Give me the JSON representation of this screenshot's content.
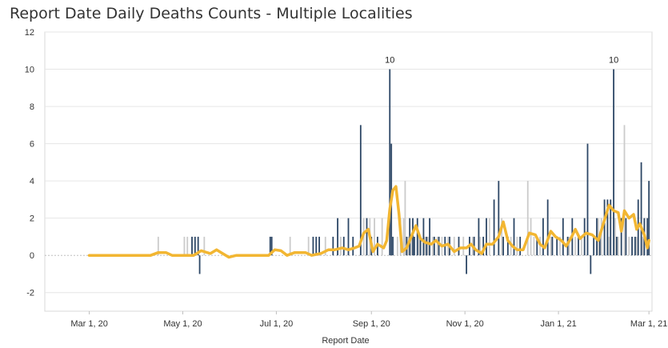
{
  "chart_data": {
    "type": "bar",
    "title": "Report Date Daily Deaths Counts - Multiple Localities",
    "xlabel": "Report Date",
    "ylabel": "",
    "ylim": [
      -3,
      12
    ],
    "xlim": [
      "2020-02-01",
      "2021-03-03"
    ],
    "y_ticks": [
      -2,
      0,
      2,
      4,
      6,
      8,
      10,
      12
    ],
    "x_ticks": [
      {
        "date": "2020-03-01",
        "label": "Mar 1, 20"
      },
      {
        "date": "2020-05-01",
        "label": "May 1, 20"
      },
      {
        "date": "2020-07-01",
        "label": "Jul 1, 20"
      },
      {
        "date": "2020-09-01",
        "label": "Sep 1, 20"
      },
      {
        "date": "2020-11-01",
        "label": "Nov 1, 20"
      },
      {
        "date": "2021-01-01",
        "label": "Jan 1, 21"
      },
      {
        "date": "2021-03-01",
        "label": "Mar 1, 21"
      }
    ],
    "grid": true,
    "colors": {
      "dark": "#2d4766",
      "gray": "#cbcbcb",
      "line": "#f2b632",
      "grid": "#e6e6e6"
    },
    "annotations": [
      {
        "date": "2020-09-13",
        "value": 10,
        "text": "10"
      },
      {
        "date": "2021-02-06",
        "value": 10,
        "text": "10"
      }
    ],
    "series": [
      {
        "style": "dark",
        "points": [
          [
            "2020-05-07",
            1
          ],
          [
            "2020-05-09",
            1
          ],
          [
            "2020-05-11",
            1
          ],
          [
            "2020-05-12",
            -1
          ],
          [
            "2020-06-27",
            1
          ],
          [
            "2020-06-28",
            1
          ],
          [
            "2020-07-25",
            1
          ],
          [
            "2020-07-27",
            1
          ],
          [
            "2020-07-29",
            1
          ],
          [
            "2020-08-07",
            1
          ],
          [
            "2020-08-10",
            2
          ],
          [
            "2020-08-14",
            1
          ],
          [
            "2020-08-17",
            2
          ],
          [
            "2020-08-20",
            1
          ],
          [
            "2020-08-25",
            7
          ],
          [
            "2020-08-29",
            2
          ],
          [
            "2020-09-01",
            1
          ],
          [
            "2020-09-05",
            1
          ],
          [
            "2020-09-13",
            10
          ],
          [
            "2020-09-14",
            6
          ],
          [
            "2020-09-15",
            1
          ],
          [
            "2020-09-24",
            1
          ],
          [
            "2020-09-26",
            2
          ],
          [
            "2020-09-28",
            2
          ],
          [
            "2020-09-29",
            1
          ],
          [
            "2020-10-01",
            2
          ],
          [
            "2020-10-03",
            1
          ],
          [
            "2020-10-05",
            2
          ],
          [
            "2020-10-07",
            1
          ],
          [
            "2020-10-09",
            2
          ],
          [
            "2020-10-12",
            1
          ],
          [
            "2020-10-15",
            1
          ],
          [
            "2020-10-19",
            1
          ],
          [
            "2020-10-22",
            1
          ],
          [
            "2020-10-28",
            1
          ],
          [
            "2020-11-02",
            -1
          ],
          [
            "2020-11-04",
            1
          ],
          [
            "2020-11-07",
            1
          ],
          [
            "2020-11-10",
            2
          ],
          [
            "2020-11-13",
            1
          ],
          [
            "2020-11-15",
            2
          ],
          [
            "2020-11-20",
            3
          ],
          [
            "2020-11-23",
            4
          ],
          [
            "2020-11-26",
            1
          ],
          [
            "2020-11-29",
            1
          ],
          [
            "2020-12-03",
            2
          ],
          [
            "2020-12-07",
            1
          ],
          [
            "2020-12-18",
            1
          ],
          [
            "2020-12-22",
            2
          ],
          [
            "2020-12-25",
            3
          ],
          [
            "2020-12-28",
            1
          ],
          [
            "2020-12-31",
            1
          ],
          [
            "2021-01-04",
            2
          ],
          [
            "2021-01-07",
            1
          ],
          [
            "2021-01-10",
            2
          ],
          [
            "2021-01-14",
            1
          ],
          [
            "2021-01-18",
            2
          ],
          [
            "2021-01-20",
            6
          ],
          [
            "2021-01-22",
            -1
          ],
          [
            "2021-01-24",
            1
          ],
          [
            "2021-01-26",
            2
          ],
          [
            "2021-01-28",
            1
          ],
          [
            "2021-01-31",
            3
          ],
          [
            "2021-02-02",
            3
          ],
          [
            "2021-02-04",
            3
          ],
          [
            "2021-02-06",
            10
          ],
          [
            "2021-02-08",
            1
          ],
          [
            "2021-02-11",
            2
          ],
          [
            "2021-02-14",
            2
          ],
          [
            "2021-02-18",
            1
          ],
          [
            "2021-02-20",
            1
          ],
          [
            "2021-02-22",
            3
          ],
          [
            "2021-02-24",
            5
          ],
          [
            "2021-02-26",
            2
          ],
          [
            "2021-02-28",
            2
          ],
          [
            "2021-03-01",
            4
          ]
        ]
      },
      {
        "style": "gray",
        "points": [
          [
            "2020-04-15",
            1
          ],
          [
            "2020-05-02",
            1
          ],
          [
            "2020-05-04",
            1
          ],
          [
            "2020-05-15",
            1
          ],
          [
            "2020-07-10",
            1
          ],
          [
            "2020-07-22",
            1
          ],
          [
            "2020-08-02",
            1
          ],
          [
            "2020-08-12",
            1
          ],
          [
            "2020-08-27",
            2
          ],
          [
            "2020-08-31",
            2
          ],
          [
            "2020-09-03",
            2
          ],
          [
            "2020-09-08",
            2
          ],
          [
            "2020-09-18",
            1
          ],
          [
            "2020-09-20",
            2
          ],
          [
            "2020-09-22",
            2
          ],
          [
            "2020-09-23",
            4
          ],
          [
            "2020-09-25",
            1
          ],
          [
            "2020-09-27",
            1
          ],
          [
            "2020-10-02",
            1
          ],
          [
            "2020-10-06",
            1
          ],
          [
            "2020-10-08",
            1
          ],
          [
            "2020-10-11",
            1
          ],
          [
            "2020-10-14",
            1
          ],
          [
            "2020-10-17",
            1
          ],
          [
            "2020-10-21",
            1
          ],
          [
            "2020-10-25",
            1
          ],
          [
            "2020-10-31",
            1
          ],
          [
            "2020-11-06",
            1
          ],
          [
            "2020-11-11",
            1
          ],
          [
            "2020-11-17",
            2
          ],
          [
            "2020-11-25",
            2
          ],
          [
            "2020-12-01",
            1
          ],
          [
            "2020-12-05",
            1
          ],
          [
            "2020-12-12",
            4
          ],
          [
            "2020-12-14",
            2
          ],
          [
            "2020-12-16",
            1
          ],
          [
            "2020-12-20",
            1
          ],
          [
            "2020-12-27",
            1
          ],
          [
            "2021-01-02",
            1
          ],
          [
            "2021-01-08",
            1
          ],
          [
            "2021-01-12",
            1
          ],
          [
            "2021-01-16",
            1
          ],
          [
            "2021-01-27",
            2
          ],
          [
            "2021-01-29",
            2
          ],
          [
            "2021-02-03",
            1
          ],
          [
            "2021-02-07",
            2
          ],
          [
            "2021-02-09",
            1
          ],
          [
            "2021-02-13",
            7
          ],
          [
            "2021-02-16",
            1
          ],
          [
            "2021-02-21",
            1
          ],
          [
            "2021-02-25",
            1
          ]
        ]
      },
      {
        "style": "line",
        "points": [
          [
            "2020-03-01",
            0
          ],
          [
            "2020-03-20",
            0
          ],
          [
            "2020-04-10",
            0
          ],
          [
            "2020-04-15",
            0.15
          ],
          [
            "2020-04-20",
            0.15
          ],
          [
            "2020-04-24",
            0
          ],
          [
            "2020-05-01",
            0
          ],
          [
            "2020-05-08",
            0
          ],
          [
            "2020-05-13",
            0.25
          ],
          [
            "2020-05-19",
            0.1
          ],
          [
            "2020-05-23",
            0.3
          ],
          [
            "2020-05-27",
            0.1
          ],
          [
            "2020-05-31",
            -0.1
          ],
          [
            "2020-06-05",
            0
          ],
          [
            "2020-06-20",
            0
          ],
          [
            "2020-06-26",
            0
          ],
          [
            "2020-06-30",
            0.3
          ],
          [
            "2020-07-04",
            0.25
          ],
          [
            "2020-07-08",
            0
          ],
          [
            "2020-07-13",
            0.15
          ],
          [
            "2020-07-20",
            0.15
          ],
          [
            "2020-07-24",
            0
          ],
          [
            "2020-07-30",
            0.1
          ],
          [
            "2020-08-04",
            0.3
          ],
          [
            "2020-08-08",
            0.3
          ],
          [
            "2020-08-13",
            0.4
          ],
          [
            "2020-08-17",
            0.3
          ],
          [
            "2020-08-21",
            0.4
          ],
          [
            "2020-08-24",
            0.5
          ],
          [
            "2020-08-27",
            1.2
          ],
          [
            "2020-08-30",
            1.4
          ],
          [
            "2020-09-02",
            0.2
          ],
          [
            "2020-09-05",
            0.6
          ],
          [
            "2020-09-09",
            0.4
          ],
          [
            "2020-09-11",
            0.8
          ],
          [
            "2020-09-13",
            2.5
          ],
          [
            "2020-09-15",
            3.5
          ],
          [
            "2020-09-17",
            3.7
          ],
          [
            "2020-09-19",
            2.2
          ],
          [
            "2020-09-21",
            0.2
          ],
          [
            "2020-09-24",
            0.4
          ],
          [
            "2020-09-27",
            1.0
          ],
          [
            "2020-09-30",
            1.6
          ],
          [
            "2020-10-03",
            0.9
          ],
          [
            "2020-10-06",
            0.7
          ],
          [
            "2020-10-10",
            0.6
          ],
          [
            "2020-10-13",
            0.8
          ],
          [
            "2020-10-17",
            0.5
          ],
          [
            "2020-10-21",
            0.6
          ],
          [
            "2020-10-25",
            0.2
          ],
          [
            "2020-10-29",
            0.4
          ],
          [
            "2020-11-02",
            0.4
          ],
          [
            "2020-11-05",
            0.6
          ],
          [
            "2020-11-08",
            0.3
          ],
          [
            "2020-11-12",
            0.1
          ],
          [
            "2020-11-15",
            0.6
          ],
          [
            "2020-11-19",
            0.6
          ],
          [
            "2020-11-23",
            1.0
          ],
          [
            "2020-11-26",
            1.8
          ],
          [
            "2020-11-29",
            0.8
          ],
          [
            "2020-12-02",
            0.5
          ],
          [
            "2020-12-05",
            0.3
          ],
          [
            "2020-12-09",
            0.3
          ],
          [
            "2020-12-13",
            1.2
          ],
          [
            "2020-12-17",
            1.1
          ],
          [
            "2020-12-20",
            0.6
          ],
          [
            "2020-12-23",
            0.4
          ],
          [
            "2020-12-27",
            1.3
          ],
          [
            "2020-12-30",
            1.0
          ],
          [
            "2021-01-03",
            0.8
          ],
          [
            "2021-01-06",
            0.5
          ],
          [
            "2021-01-09",
            0.9
          ],
          [
            "2021-01-12",
            1.4
          ],
          [
            "2021-01-15",
            0.9
          ],
          [
            "2021-01-19",
            1.2
          ],
          [
            "2021-01-23",
            1.1
          ],
          [
            "2021-01-27",
            0.8
          ],
          [
            "2021-01-31",
            1.9
          ],
          [
            "2021-02-03",
            2.7
          ],
          [
            "2021-02-06",
            2.4
          ],
          [
            "2021-02-09",
            2.3
          ],
          [
            "2021-02-11",
            1.3
          ],
          [
            "2021-02-13",
            2.4
          ],
          [
            "2021-02-16",
            2.0
          ],
          [
            "2021-02-19",
            2.2
          ],
          [
            "2021-02-21",
            1.4
          ],
          [
            "2021-02-23",
            1.7
          ],
          [
            "2021-02-26",
            1.1
          ],
          [
            "2021-02-28",
            0.4
          ],
          [
            "2021-03-01",
            0.8
          ]
        ]
      }
    ]
  }
}
